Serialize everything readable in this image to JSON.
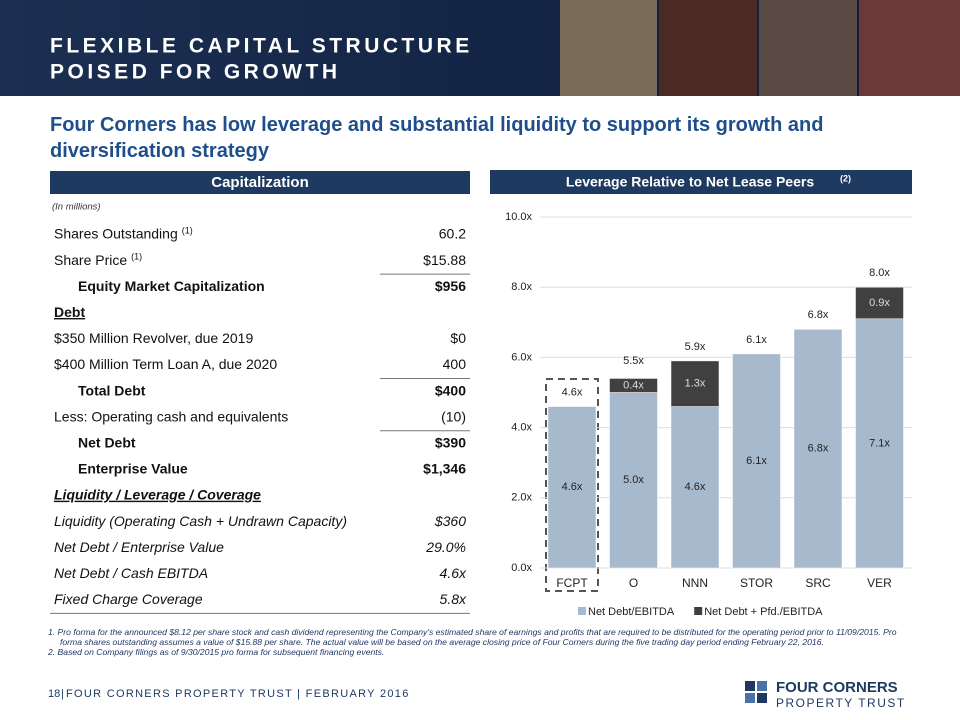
{
  "header": {
    "title_lines": [
      "FLEXIBLE CAPITAL STRUCTURE",
      "POISED FOR GROWTH"
    ]
  },
  "subtitle": "Four Corners has low leverage and substantial liquidity to support its growth and diversification strategy",
  "table": {
    "title": "Capitalization",
    "units": "(In millions)",
    "rows": [
      {
        "label": "Shares Outstanding",
        "note": "(1)",
        "value": "60.2"
      },
      {
        "label": "Share Price",
        "note": "(1)",
        "value": "$15.88"
      },
      {
        "label": "Equity Market Capitalization",
        "value": "$956"
      },
      {
        "label": "Debt"
      },
      {
        "label": "$350 Million Revolver, due 2019",
        "value": "$0"
      },
      {
        "label": "$400 Million Term Loan A, due 2020",
        "value": "400"
      },
      {
        "label": "Total Debt",
        "value": "$400"
      },
      {
        "label": "Less: Operating cash and equivalents",
        "value": "(10)"
      },
      {
        "label": "Net Debt",
        "value": "$390"
      },
      {
        "label": "Enterprise Value",
        "value": "$1,346"
      },
      {
        "label": "Liquidity / Leverage / Coverage"
      },
      {
        "label": "Liquidity (Operating Cash + Undrawn Capacity)",
        "value": "$360"
      },
      {
        "label": "Net Debt / Enterprise Value",
        "value": "29.0%"
      },
      {
        "label": "Net Debt / Cash EBITDA",
        "value": "4.6x"
      },
      {
        "label": "Fixed Charge Coverage",
        "value": "5.8x"
      }
    ]
  },
  "chart_data": {
    "type": "stacked_bar",
    "title": "Leverage Relative to Net Lease Peers",
    "title_note": "(2)",
    "categories": [
      "FCPT",
      "O",
      "NNN",
      "STOR",
      "SRC",
      "VER"
    ],
    "series": [
      {
        "name": "Net Debt/EBITDA",
        "color": "#a7b9cd",
        "values": [
          4.6,
          5.0,
          4.6,
          6.1,
          6.8,
          7.1
        ],
        "value_labels": [
          "4.6x",
          "5.0x",
          "4.6x",
          "6.1x",
          "6.8x",
          "7.1x"
        ]
      },
      {
        "name": "Net Debt + Pfd./EBITDA",
        "color": "#404040",
        "values": [
          null,
          0.4,
          1.3,
          null,
          null,
          0.9
        ],
        "value_labels": [
          null,
          "0.4x",
          "1.3x",
          null,
          null,
          "0.9x"
        ]
      }
    ],
    "totals": {
      "values": [
        4.6,
        5.5,
        5.9,
        6.1,
        6.8,
        8.0
      ],
      "value_labels": [
        "4.6x",
        "5.5x",
        "5.9x",
        "6.1x",
        "6.8x",
        "8.0x"
      ]
    },
    "ylim": [
      0,
      10
    ],
    "yticks": [
      {
        "value": 0,
        "label": "0.0x"
      },
      {
        "value": 2,
        "label": "2.0x"
      },
      {
        "value": 4,
        "label": "4.0x"
      },
      {
        "value": 6,
        "label": "6.0x"
      },
      {
        "value": 8,
        "label": "8.0x"
      },
      {
        "value": 10,
        "label": "10.0x"
      }
    ],
    "grid": true,
    "legend": "bottom"
  },
  "footnotes": [
    "1.  Pro forma for the announced $8.12 per share stock and cash dividend representing the Company's estimated share of earnings and profits that are required to be distributed for the operating period prior to 11/09/2015. Pro forma shares outstanding assumes a value of $15.88 per share. The actual value will be based on the average closing price of Four Corners during the five trading day period ending February 22, 2016.",
    "2.  Based on Company filings as of 9/30/2015 pro forma for subsequent financing events."
  ],
  "footer": {
    "page": "18",
    "text": "FOUR CORNERS PROPERTY TRUST | FEBRUARY 2016",
    "logo_line1": "FOUR CORNERS",
    "logo_line2": "PROPERTY TRUST"
  }
}
